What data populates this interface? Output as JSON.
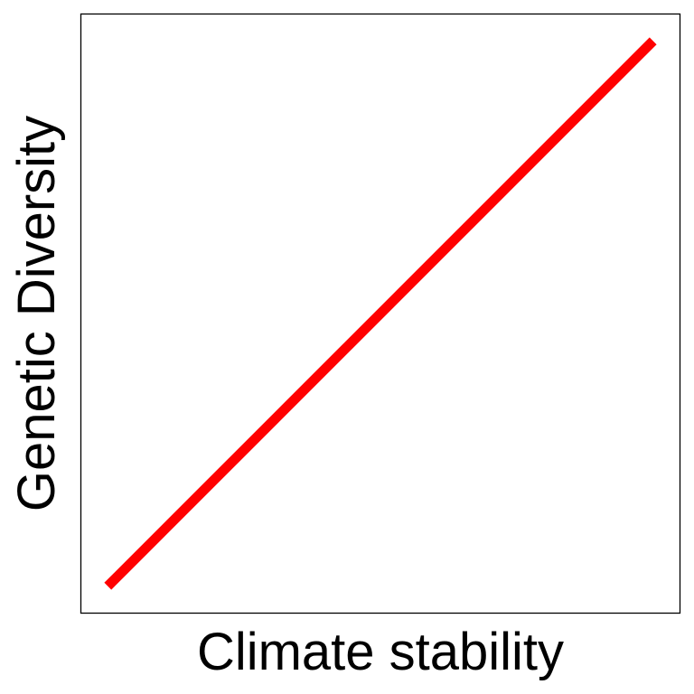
{
  "chart_data": {
    "type": "line",
    "title": "",
    "xlabel": "Climate stability",
    "ylabel": "Genetic Diversity",
    "x_ticks_shown": false,
    "y_ticks_shown": false,
    "grid": false,
    "legend": "none",
    "xlim": [
      0,
      1
    ],
    "ylim": [
      0,
      1
    ],
    "series": [
      {
        "x": [
          0,
          1
        ],
        "values": [
          0,
          1
        ],
        "color": "#ff0000"
      }
    ]
  }
}
